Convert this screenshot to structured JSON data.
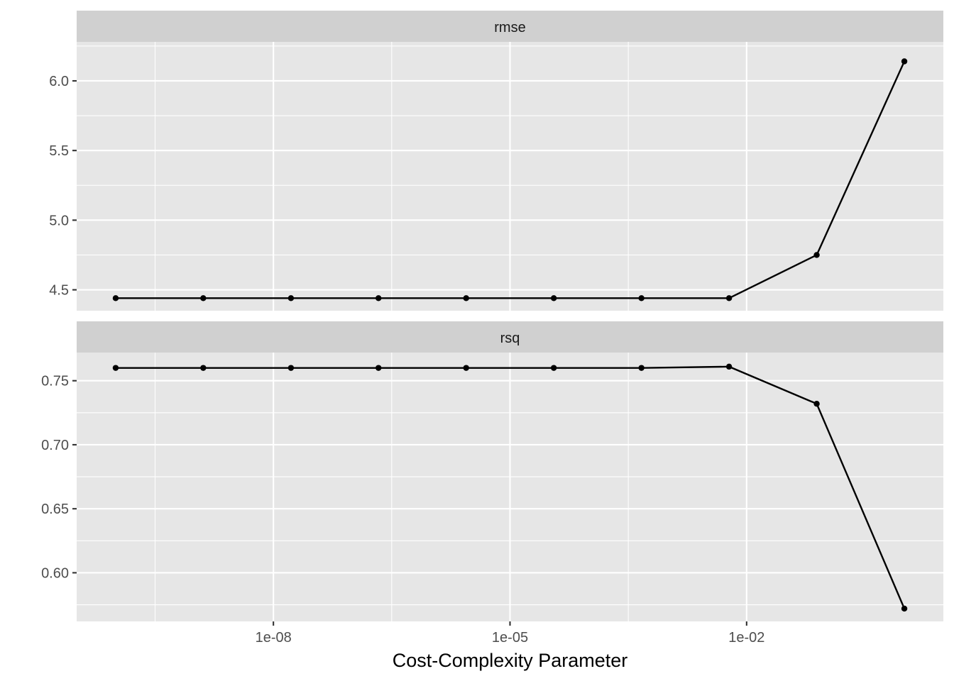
{
  "chart_data": {
    "type": "line",
    "xlabel": "Cost-Complexity Parameter",
    "xscale": "log10",
    "xlim": [
      1e-10,
      1
    ],
    "x_ticks": [
      1e-08,
      1e-05,
      0.01
    ],
    "x_tick_labels": [
      "1e-08",
      "1e-05",
      "1e-02"
    ],
    "grid": true,
    "color": "#000000",
    "panels": [
      {
        "name": "rmse",
        "ylim": [
          4.35,
          6.28
        ],
        "y_ticks": [
          4.5,
          5.0,
          5.5,
          6.0
        ],
        "y_tick_labels": [
          "4.5",
          "5.0",
          "5.5",
          "6.0"
        ],
        "x": [
          1e-10,
          1.29e-09,
          1.67e-08,
          2.15e-07,
          2.78e-06,
          3.59e-05,
          0.000464,
          0.00599,
          0.0774,
          1.0
        ],
        "y": [
          4.44,
          4.44,
          4.44,
          4.44,
          4.44,
          4.44,
          4.44,
          4.44,
          4.75,
          6.14
        ]
      },
      {
        "name": "rsq",
        "ylim": [
          0.562,
          0.772
        ],
        "y_ticks": [
          0.6,
          0.65,
          0.7,
          0.75
        ],
        "y_tick_labels": [
          "0.60",
          "0.65",
          "0.70",
          "0.75"
        ],
        "x": [
          1e-10,
          1.29e-09,
          1.67e-08,
          2.15e-07,
          2.78e-06,
          3.59e-05,
          0.000464,
          0.00599,
          0.0774,
          1.0
        ],
        "y": [
          0.76,
          0.76,
          0.76,
          0.76,
          0.76,
          0.76,
          0.76,
          0.761,
          0.732,
          0.572
        ]
      }
    ]
  }
}
